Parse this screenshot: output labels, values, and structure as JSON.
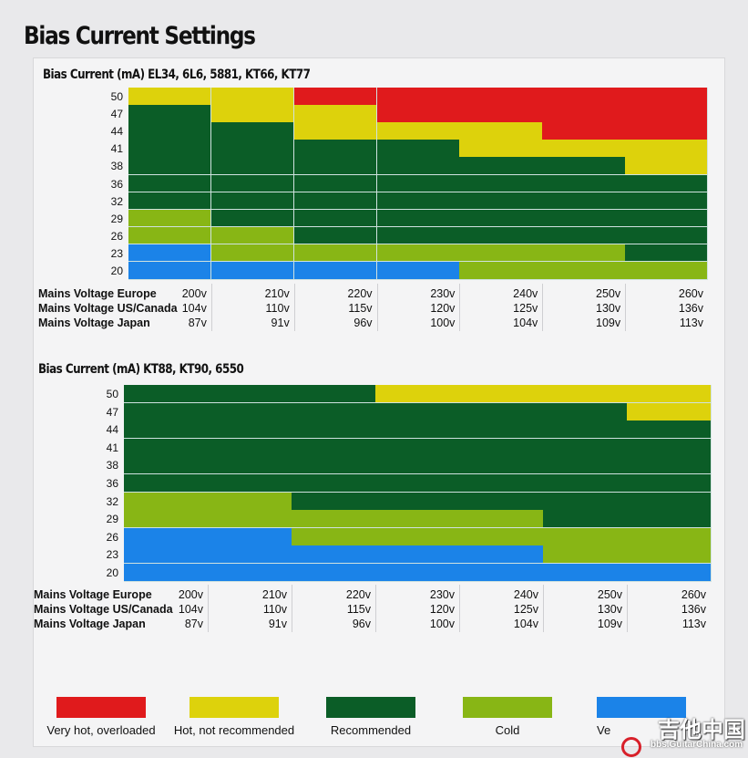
{
  "title": "Bias Current Settings",
  "legend": [
    {
      "code": "R",
      "label": "Very hot, overloaded",
      "color": "#e01a1c"
    },
    {
      "code": "Y",
      "label": "Hot, not recommended",
      "color": "#ddd20c"
    },
    {
      "code": "G",
      "label": "Recommended",
      "color": "#0b5d27"
    },
    {
      "code": "C",
      "label": "Cold",
      "color": "#88b615"
    },
    {
      "code": "B",
      "label": "Ve",
      "color": "#1b83e8"
    }
  ],
  "voltage_labels": [
    "Mains Voltage Europe",
    "Mains Voltage US/Canada",
    "Mains Voltage Japan"
  ],
  "watermark": {
    "cn": "吉他中国",
    "url": "bbs.GuitarChina.com"
  },
  "chart_data": [
    {
      "type": "heatmap",
      "title": "Bias Current (mA) EL34, 6L6, 5881, KT66, KT77",
      "ylabel": "Bias Current (mA)",
      "rows": [
        "50",
        "47",
        "44",
        "41",
        "38",
        "36",
        "32",
        "29",
        "26",
        "23",
        "20"
      ],
      "columns": {
        "europe": [
          "200v",
          "210v",
          "220v",
          "230v",
          "240v",
          "250v",
          "260v"
        ],
        "us_canada": [
          "104v",
          "110v",
          "115v",
          "120v",
          "125v",
          "130v",
          "136v"
        ],
        "japan": [
          "87v",
          "91v",
          "96v",
          "100v",
          "104v",
          "109v",
          "113v"
        ]
      },
      "values": [
        [
          "Y",
          "Y",
          "R",
          "R",
          "R",
          "R",
          "R"
        ],
        [
          "G",
          "Y",
          "Y",
          "R",
          "R",
          "R",
          "R"
        ],
        [
          "G",
          "G",
          "Y",
          "Y",
          "Y",
          "R",
          "R"
        ],
        [
          "G",
          "G",
          "G",
          "G",
          "Y",
          "Y",
          "Y"
        ],
        [
          "G",
          "G",
          "G",
          "G",
          "G",
          "G",
          "Y"
        ],
        [
          "G",
          "G",
          "G",
          "G",
          "G",
          "G",
          "G"
        ],
        [
          "G",
          "G",
          "G",
          "G",
          "G",
          "G",
          "G"
        ],
        [
          "C",
          "G",
          "G",
          "G",
          "G",
          "G",
          "G"
        ],
        [
          "C",
          "C",
          "G",
          "G",
          "G",
          "G",
          "G"
        ],
        [
          "B",
          "C",
          "C",
          "C",
          "C",
          "C",
          "G"
        ],
        [
          "B",
          "B",
          "B",
          "B",
          "C",
          "C",
          "C"
        ]
      ]
    },
    {
      "type": "heatmap",
      "title": "Bias Current (mA) KT88, KT90, 6550",
      "ylabel": "Bias Current (mA)",
      "rows": [
        "50",
        "47",
        "44",
        "41",
        "38",
        "36",
        "32",
        "29",
        "26",
        "23",
        "20"
      ],
      "columns": {
        "europe": [
          "200v",
          "210v",
          "220v",
          "230v",
          "240v",
          "250v",
          "260v"
        ],
        "us_canada": [
          "104v",
          "110v",
          "115v",
          "120v",
          "125v",
          "130v",
          "136v"
        ],
        "japan": [
          "87v",
          "91v",
          "96v",
          "100v",
          "104v",
          "109v",
          "113v"
        ]
      },
      "values": [
        [
          "G",
          "G",
          "G",
          "Y",
          "Y",
          "Y",
          "Y"
        ],
        [
          "G",
          "G",
          "G",
          "G",
          "G",
          "G",
          "Y"
        ],
        [
          "G",
          "G",
          "G",
          "G",
          "G",
          "G",
          "G"
        ],
        [
          "G",
          "G",
          "G",
          "G",
          "G",
          "G",
          "G"
        ],
        [
          "G",
          "G",
          "G",
          "G",
          "G",
          "G",
          "G"
        ],
        [
          "G",
          "G",
          "G",
          "G",
          "G",
          "G",
          "G"
        ],
        [
          "C",
          "C",
          "G",
          "G",
          "G",
          "G",
          "G"
        ],
        [
          "C",
          "C",
          "C",
          "C",
          "C",
          "G",
          "G"
        ],
        [
          "B",
          "B",
          "C",
          "C",
          "C",
          "C",
          "C"
        ],
        [
          "B",
          "B",
          "B",
          "B",
          "B",
          "C",
          "C"
        ],
        [
          "B",
          "B",
          "B",
          "B",
          "B",
          "B",
          "B"
        ]
      ]
    }
  ]
}
